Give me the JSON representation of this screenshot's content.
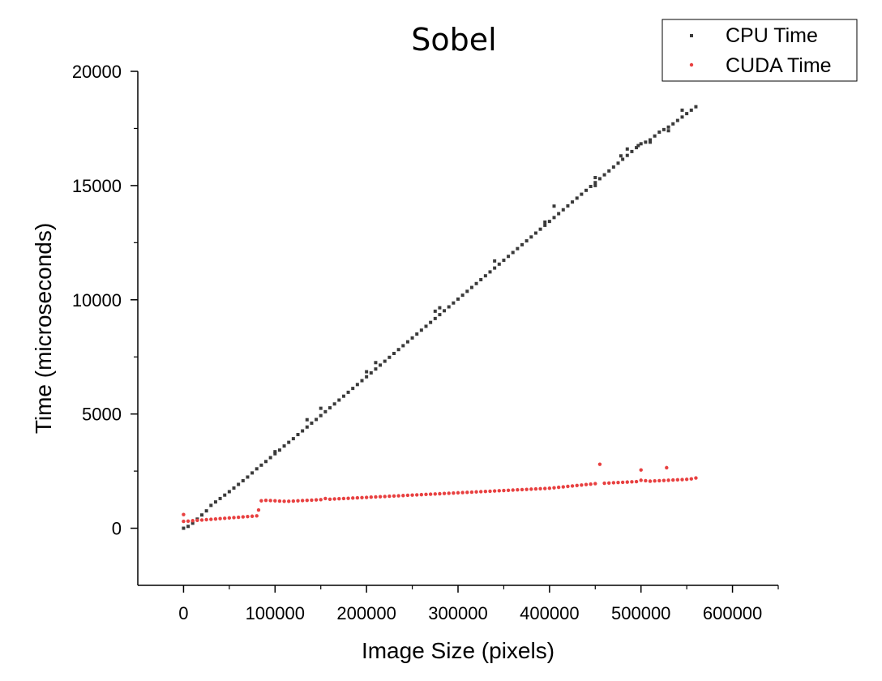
{
  "chart_data": {
    "type": "scatter",
    "title": "Sobel",
    "xlabel": "Image Size (pixels)",
    "ylabel": "Time (microseconds)",
    "xlim": [
      -50000,
      650000
    ],
    "ylim": [
      -2500,
      20000
    ],
    "x_ticks": [
      0,
      100000,
      200000,
      300000,
      400000,
      500000,
      600000
    ],
    "y_ticks": [
      0,
      5000,
      10000,
      15000,
      20000
    ],
    "x_tick_labels": [
      "0",
      "100000",
      "200000",
      "300000",
      "400000",
      "500000",
      "600000"
    ],
    "y_tick_labels": [
      "0",
      "5000",
      "10000",
      "15000",
      "20000"
    ],
    "grid": false,
    "legend_position": "top-right",
    "series": [
      {
        "name": "CPU Time",
        "color": "#3a3a3a",
        "marker": "square",
        "points": [
          [
            0,
            0
          ],
          [
            5000,
            80
          ],
          [
            10000,
            220
          ],
          [
            15000,
            400
          ],
          [
            20000,
            580
          ],
          [
            25000,
            760
          ],
          [
            30000,
            1000
          ],
          [
            35000,
            1150
          ],
          [
            40000,
            1300
          ],
          [
            45000,
            1450
          ],
          [
            50000,
            1600
          ],
          [
            55000,
            1760
          ],
          [
            60000,
            1920
          ],
          [
            65000,
            2080
          ],
          [
            70000,
            2240
          ],
          [
            75000,
            2420
          ],
          [
            80000,
            2600
          ],
          [
            85000,
            2760
          ],
          [
            90000,
            2920
          ],
          [
            95000,
            3090
          ],
          [
            100000,
            3260
          ],
          [
            105000,
            3420
          ],
          [
            110000,
            3600
          ],
          [
            115000,
            3760
          ],
          [
            120000,
            3920
          ],
          [
            125000,
            4100
          ],
          [
            130000,
            4260
          ],
          [
            135000,
            4430
          ],
          [
            140000,
            4600
          ],
          [
            145000,
            4760
          ],
          [
            150000,
            4930
          ],
          [
            155000,
            5100
          ],
          [
            160000,
            5270
          ],
          [
            165000,
            5440
          ],
          [
            170000,
            5610
          ],
          [
            175000,
            5780
          ],
          [
            180000,
            5950
          ],
          [
            185000,
            6120
          ],
          [
            190000,
            6290
          ],
          [
            195000,
            6460
          ],
          [
            200000,
            6630
          ],
          [
            205000,
            6800
          ],
          [
            210000,
            6970
          ],
          [
            215000,
            7140
          ],
          [
            220000,
            7310
          ],
          [
            225000,
            7480
          ],
          [
            230000,
            7650
          ],
          [
            235000,
            7820
          ],
          [
            240000,
            7990
          ],
          [
            245000,
            8160
          ],
          [
            250000,
            8330
          ],
          [
            255000,
            8500
          ],
          [
            260000,
            8670
          ],
          [
            265000,
            8840
          ],
          [
            270000,
            9010
          ],
          [
            275000,
            9180
          ],
          [
            280000,
            9350
          ],
          [
            285000,
            9520
          ],
          [
            290000,
            9690
          ],
          [
            295000,
            9860
          ],
          [
            300000,
            10030
          ],
          [
            305000,
            10200
          ],
          [
            310000,
            10370
          ],
          [
            315000,
            10540
          ],
          [
            320000,
            10710
          ],
          [
            325000,
            10880
          ],
          [
            330000,
            11050
          ],
          [
            335000,
            11220
          ],
          [
            340000,
            11390
          ],
          [
            345000,
            11560
          ],
          [
            350000,
            11730
          ],
          [
            355000,
            11900
          ],
          [
            360000,
            12070
          ],
          [
            365000,
            12240
          ],
          [
            370000,
            12410
          ],
          [
            375000,
            12580
          ],
          [
            380000,
            12750
          ],
          [
            385000,
            12920
          ],
          [
            390000,
            13090
          ],
          [
            395000,
            13260
          ],
          [
            400000,
            13430
          ],
          [
            405000,
            13600
          ],
          [
            410000,
            13770
          ],
          [
            415000,
            13940
          ],
          [
            420000,
            14110
          ],
          [
            425000,
            14280
          ],
          [
            430000,
            14450
          ],
          [
            435000,
            14620
          ],
          [
            440000,
            14790
          ],
          [
            445000,
            14960
          ],
          [
            450000,
            15130
          ],
          [
            455000,
            15300
          ],
          [
            460000,
            15470
          ],
          [
            465000,
            15640
          ],
          [
            470000,
            15810
          ],
          [
            475000,
            15980
          ],
          [
            480000,
            16150
          ],
          [
            485000,
            16320
          ],
          [
            490000,
            16490
          ],
          [
            495000,
            16660
          ],
          [
            500000,
            16830
          ],
          [
            505000,
            16900
          ],
          [
            510000,
            17000
          ],
          [
            515000,
            17170
          ],
          [
            520000,
            17340
          ],
          [
            525000,
            17450
          ],
          [
            530000,
            17560
          ],
          [
            535000,
            17700
          ],
          [
            540000,
            17850
          ],
          [
            545000,
            18000
          ],
          [
            550000,
            18150
          ],
          [
            555000,
            18300
          ],
          [
            560000,
            18450
          ],
          [
            100000,
            3350
          ],
          [
            135000,
            4750
          ],
          [
            150000,
            5250
          ],
          [
            200000,
            6850
          ],
          [
            210000,
            7250
          ],
          [
            275000,
            9500
          ],
          [
            280000,
            9650
          ],
          [
            340000,
            11700
          ],
          [
            395000,
            13400
          ],
          [
            405000,
            14100
          ],
          [
            450000,
            15000
          ],
          [
            450000,
            15350
          ],
          [
            478000,
            16300
          ],
          [
            485000,
            16600
          ],
          [
            497000,
            16750
          ],
          [
            510000,
            16900
          ],
          [
            530000,
            17400
          ],
          [
            545000,
            18300
          ]
        ]
      },
      {
        "name": "CUDA Time",
        "color": "#e84040",
        "marker": "circle",
        "points": [
          [
            0,
            600
          ],
          [
            0,
            300
          ],
          [
            5000,
            310
          ],
          [
            10000,
            330
          ],
          [
            15000,
            345
          ],
          [
            20000,
            360
          ],
          [
            25000,
            375
          ],
          [
            30000,
            390
          ],
          [
            35000,
            405
          ],
          [
            40000,
            420
          ],
          [
            45000,
            435
          ],
          [
            50000,
            450
          ],
          [
            55000,
            465
          ],
          [
            60000,
            480
          ],
          [
            65000,
            495
          ],
          [
            70000,
            510
          ],
          [
            75000,
            525
          ],
          [
            80000,
            540
          ],
          [
            82000,
            800
          ],
          [
            85000,
            1200
          ],
          [
            90000,
            1220
          ],
          [
            95000,
            1210
          ],
          [
            100000,
            1200
          ],
          [
            105000,
            1190
          ],
          [
            110000,
            1180
          ],
          [
            115000,
            1180
          ],
          [
            120000,
            1190
          ],
          [
            125000,
            1200
          ],
          [
            130000,
            1210
          ],
          [
            135000,
            1220
          ],
          [
            140000,
            1230
          ],
          [
            145000,
            1240
          ],
          [
            150000,
            1250
          ],
          [
            155000,
            1300
          ],
          [
            160000,
            1270
          ],
          [
            165000,
            1280
          ],
          [
            170000,
            1290
          ],
          [
            175000,
            1300
          ],
          [
            180000,
            1310
          ],
          [
            185000,
            1320
          ],
          [
            190000,
            1330
          ],
          [
            195000,
            1340
          ],
          [
            200000,
            1350
          ],
          [
            205000,
            1360
          ],
          [
            210000,
            1370
          ],
          [
            215000,
            1380
          ],
          [
            220000,
            1390
          ],
          [
            225000,
            1400
          ],
          [
            230000,
            1410
          ],
          [
            235000,
            1420
          ],
          [
            240000,
            1430
          ],
          [
            245000,
            1440
          ],
          [
            250000,
            1450
          ],
          [
            255000,
            1460
          ],
          [
            260000,
            1470
          ],
          [
            265000,
            1480
          ],
          [
            270000,
            1490
          ],
          [
            275000,
            1500
          ],
          [
            280000,
            1510
          ],
          [
            285000,
            1520
          ],
          [
            290000,
            1530
          ],
          [
            295000,
            1540
          ],
          [
            300000,
            1550
          ],
          [
            305000,
            1560
          ],
          [
            310000,
            1570
          ],
          [
            315000,
            1580
          ],
          [
            320000,
            1590
          ],
          [
            325000,
            1600
          ],
          [
            330000,
            1610
          ],
          [
            335000,
            1620
          ],
          [
            340000,
            1630
          ],
          [
            345000,
            1640
          ],
          [
            350000,
            1650
          ],
          [
            355000,
            1660
          ],
          [
            360000,
            1670
          ],
          [
            365000,
            1680
          ],
          [
            370000,
            1690
          ],
          [
            375000,
            1700
          ],
          [
            380000,
            1710
          ],
          [
            385000,
            1720
          ],
          [
            390000,
            1730
          ],
          [
            395000,
            1740
          ],
          [
            400000,
            1750
          ],
          [
            405000,
            1770
          ],
          [
            410000,
            1790
          ],
          [
            415000,
            1810
          ],
          [
            420000,
            1830
          ],
          [
            425000,
            1850
          ],
          [
            430000,
            1870
          ],
          [
            435000,
            1890
          ],
          [
            440000,
            1910
          ],
          [
            445000,
            1930
          ],
          [
            450000,
            1950
          ],
          [
            455000,
            2800
          ],
          [
            460000,
            1970
          ],
          [
            465000,
            1980
          ],
          [
            470000,
            1990
          ],
          [
            475000,
            2000
          ],
          [
            480000,
            2010
          ],
          [
            485000,
            2020
          ],
          [
            490000,
            2030
          ],
          [
            495000,
            2040
          ],
          [
            500000,
            2550
          ],
          [
            500000,
            2100
          ],
          [
            505000,
            2080
          ],
          [
            510000,
            2060
          ],
          [
            515000,
            2070
          ],
          [
            520000,
            2080
          ],
          [
            525000,
            2090
          ],
          [
            528000,
            2650
          ],
          [
            530000,
            2100
          ],
          [
            535000,
            2110
          ],
          [
            540000,
            2120
          ],
          [
            545000,
            2130
          ],
          [
            550000,
            2140
          ],
          [
            555000,
            2160
          ],
          [
            560000,
            2200
          ]
        ]
      }
    ]
  }
}
